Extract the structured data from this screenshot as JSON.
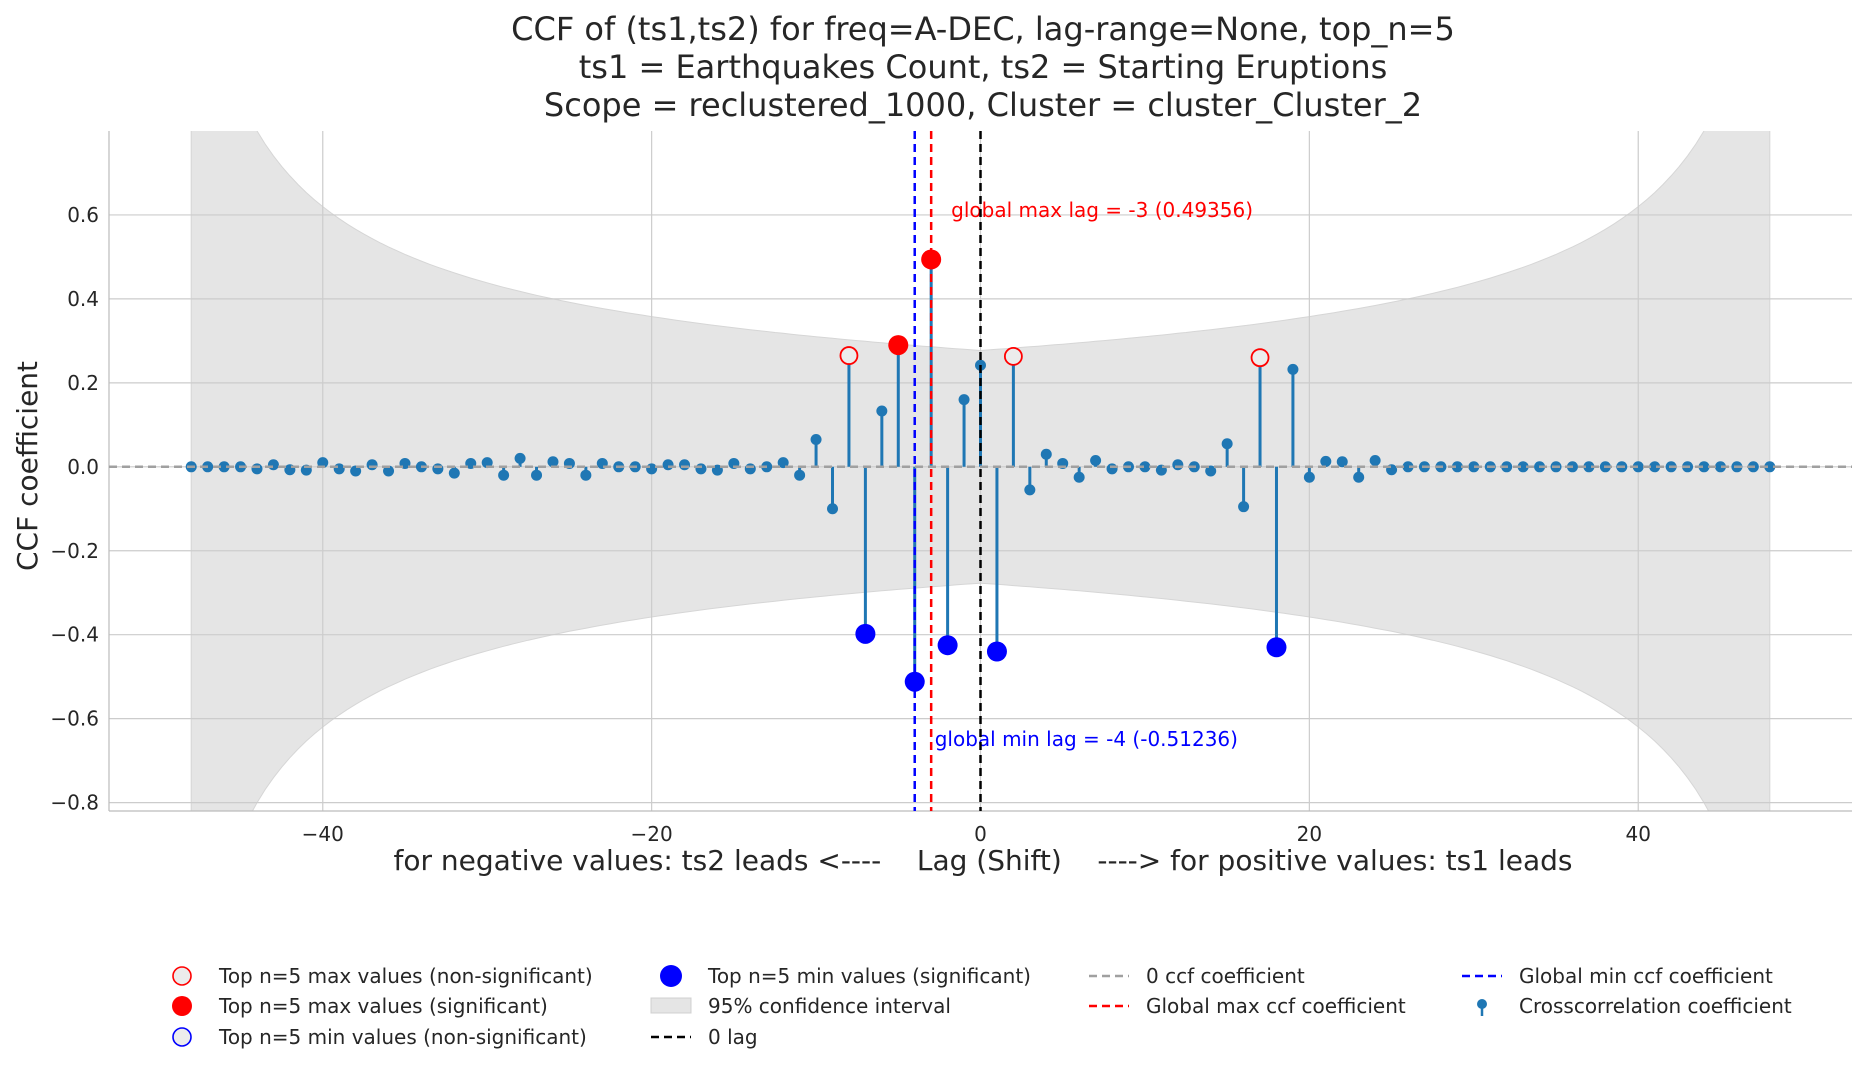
{
  "chart_data": {
    "type": "stem",
    "title_lines": [
      "CCF of (ts1,ts2) for freq=A-DEC, lag-range=None, top_n=5",
      "ts1 = Earthquakes Count, ts2 = Starting Eruptions",
      "Scope = reclustered_1000, Cluster = cluster_Cluster_2"
    ],
    "xlabel": "for negative values: ts2 leads <----    Lag (Shift)    ----> for positive values: ts1 leads",
    "ylabel": "CCF coefficient",
    "xlim": [
      -53,
      53
    ],
    "ylim": [
      -0.82,
      0.8
    ],
    "x_ticks": [
      -40,
      -20,
      0,
      20,
      40
    ],
    "x_tick_labels": [
      "−40",
      "−20",
      "0",
      "20",
      "40"
    ],
    "y_ticks": [
      -0.8,
      -0.6,
      -0.4,
      -0.2,
      0.0,
      0.2,
      0.4,
      0.6
    ],
    "y_tick_labels": [
      "−0.8",
      "−0.6",
      "−0.4",
      "−0.2",
      "0.0",
      "0.2",
      "0.4",
      "0.6"
    ],
    "grid": true,
    "confidence_interval": {
      "lags": [
        -48,
        48
      ],
      "z": 1.96,
      "n": 50
    },
    "stems": {
      "name": "Crosscorrelation coefficient",
      "color": "#1f77b4",
      "x": [
        -48,
        -47,
        -46,
        -45,
        -44,
        -43,
        -42,
        -41,
        -40,
        -39,
        -38,
        -37,
        -36,
        -35,
        -34,
        -33,
        -32,
        -31,
        -30,
        -29,
        -28,
        -27,
        -26,
        -25,
        -24,
        -23,
        -22,
        -21,
        -20,
        -19,
        -18,
        -17,
        -16,
        -15,
        -14,
        -13,
        -12,
        -11,
        -10,
        -9,
        -8,
        -7,
        -6,
        -5,
        -4,
        -3,
        -2,
        -1,
        0,
        1,
        2,
        3,
        4,
        5,
        6,
        7,
        8,
        9,
        10,
        11,
        12,
        13,
        14,
        15,
        16,
        17,
        18,
        19,
        20,
        21,
        22,
        23,
        24,
        25,
        26,
        27,
        28,
        29,
        30,
        31,
        32,
        33,
        34,
        35,
        36,
        37,
        38,
        39,
        40,
        41,
        42,
        43,
        44,
        45,
        46,
        47,
        48
      ],
      "y": [
        0.0,
        0.0,
        0.0,
        0.0,
        -0.005,
        0.005,
        -0.007,
        -0.008,
        0.01,
        -0.005,
        -0.01,
        0.005,
        -0.01,
        0.008,
        0.0,
        -0.005,
        -0.015,
        0.008,
        0.01,
        -0.02,
        0.02,
        -0.02,
        0.012,
        0.008,
        -0.02,
        0.008,
        0.0,
        0.0,
        -0.005,
        0.005,
        0.005,
        -0.005,
        -0.008,
        0.008,
        -0.005,
        0.0,
        0.01,
        -0.02,
        0.065,
        -0.1,
        0.265,
        -0.398,
        0.133,
        0.29,
        -0.512,
        0.494,
        -0.425,
        0.16,
        0.242,
        -0.44,
        0.263,
        -0.055,
        0.03,
        0.008,
        -0.025,
        0.015,
        -0.005,
        0.0,
        0.0,
        -0.008,
        0.005,
        0.0,
        -0.01,
        0.055,
        -0.095,
        0.26,
        -0.43,
        0.232,
        -0.025,
        0.013,
        0.012,
        -0.025,
        0.015,
        -0.007,
        0.0,
        0.0,
        0.0,
        0.0,
        0.0,
        0.0,
        0.0,
        0.0,
        0.0,
        0.0,
        0.0,
        0.0,
        0.0,
        0.0,
        0.0,
        0.0,
        0.0,
        0.0,
        0.0,
        0.0,
        0.0,
        0.0,
        0.0
      ]
    },
    "top_max_significant": {
      "x": [
        -3,
        -5
      ],
      "y": [
        0.494,
        0.29
      ]
    },
    "top_max_nonsignificant": {
      "x": [
        -8,
        2,
        17
      ],
      "y": [
        0.265,
        0.263,
        0.26
      ]
    },
    "top_min_significant": {
      "x": [
        -4,
        1,
        18,
        -2,
        -7
      ],
      "y": [
        -0.512,
        -0.44,
        -0.43,
        -0.425,
        -0.398
      ]
    },
    "top_min_nonsignificant": {
      "x": [],
      "y": []
    },
    "global_max": {
      "lag": -3,
      "value": 0.49356,
      "label": "global max lag = -3 (0.49356)"
    },
    "global_min": {
      "lag": -4,
      "value": -0.51236,
      "label": "global min lag = -4 (-0.51236)"
    },
    "zero_lag": 0,
    "colors": {
      "stem": "#1f77b4",
      "max": "#ff0000",
      "min": "#0000ff",
      "zero_line": "#000000",
      "zero_ccf": "#a0a0a0",
      "ci_fill": "#e5e5e5",
      "grid": "#cccccc"
    },
    "legend": {
      "placement": "bottom",
      "columns": [
        [
          "Top n=5 max values (non-significant)",
          "Top n=5 max values (significant)",
          "Top n=5 min values (non-significant)"
        ],
        [
          "Top n=5 min values (significant)",
          "95% confidence interval",
          "0 lag"
        ],
        [
          "0 ccf coefficient",
          "Global max ccf coefficient"
        ],
        [
          "Global min ccf coefficient",
          "Crosscorrelation coefficient"
        ]
      ]
    }
  }
}
